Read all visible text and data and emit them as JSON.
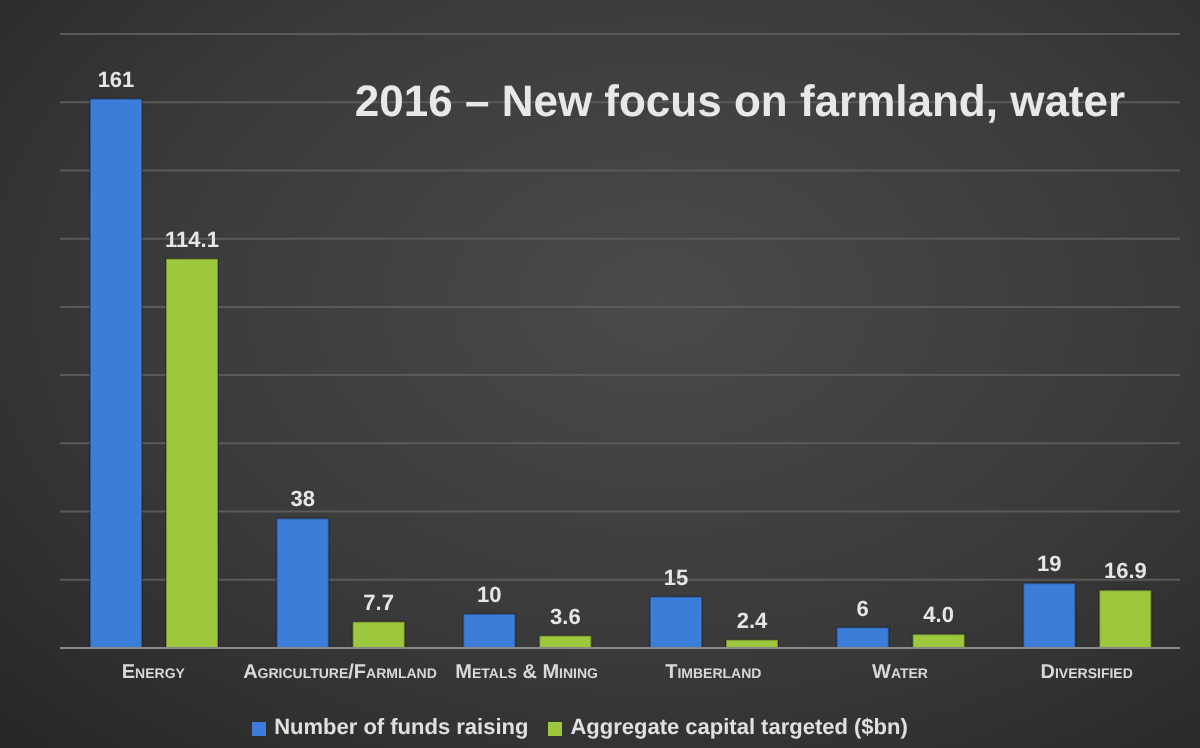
{
  "chart_data": {
    "type": "bar",
    "title": "2016 – New focus on farmland, water",
    "categories": [
      "Energy",
      "Agriculture/Farmland",
      "Metals & Mining",
      "Timberland",
      "Water",
      "Diversified"
    ],
    "series": [
      {
        "name": "Number of funds raising",
        "color": "#3b7dd8",
        "values": [
          161,
          38,
          10,
          15,
          6,
          19
        ],
        "value_labels": [
          "161",
          "38",
          "10",
          "15",
          "6",
          "19"
        ]
      },
      {
        "name": "Aggregate capital targeted ($bn)",
        "color": "#9dc83e",
        "values": [
          114.1,
          7.7,
          3.6,
          2.4,
          4.0,
          16.9
        ],
        "value_labels": [
          "114.1",
          "7.7",
          "3.6",
          "2.4",
          "4.0",
          "16.9"
        ]
      }
    ],
    "ylim": [
      0,
      180
    ],
    "yticks": [
      {
        "value": 0,
        "label": null
      },
      {
        "value": 20,
        "label": null
      },
      {
        "value": 40,
        "label": null
      },
      {
        "value": 60,
        "label": null
      },
      {
        "value": 80,
        "label": null
      },
      {
        "value": 100,
        "label": null
      },
      {
        "value": 120,
        "label": null
      },
      {
        "value": 140,
        "label": null
      },
      {
        "value": 160,
        "label": null
      },
      {
        "value": 180,
        "label": null
      }
    ],
    "grid": "y",
    "tick_labels": "x",
    "legend": "bottom"
  }
}
